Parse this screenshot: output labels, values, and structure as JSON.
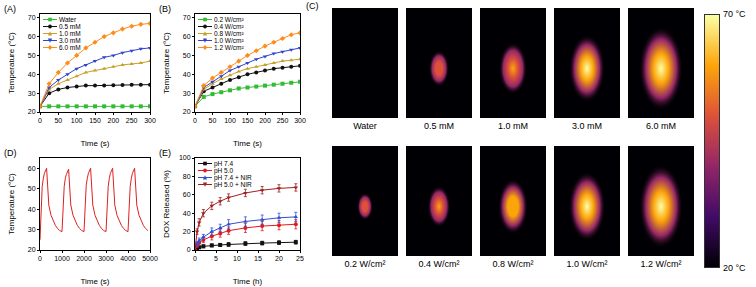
{
  "chart_data": [
    {
      "panel": "(A)",
      "type": "line",
      "x_label": "Time (s)",
      "y_label": "Temperature (°C)",
      "xlim": [
        0,
        300
      ],
      "xticks": [
        0,
        50,
        100,
        150,
        200,
        250,
        300
      ],
      "ylim": [
        20,
        72
      ],
      "yticks": [
        20,
        30,
        40,
        50,
        60,
        70
      ],
      "grid": false,
      "legend": "upper left",
      "x": [
        0,
        25,
        50,
        75,
        100,
        125,
        150,
        175,
        200,
        225,
        250,
        275,
        300
      ],
      "series": [
        {
          "name": "Water",
          "color": "#33bb33",
          "marker": "square",
          "values": [
            23,
            23,
            23,
            23,
            23,
            23,
            23,
            23,
            23,
            23,
            23,
            23,
            23
          ]
        },
        {
          "name": "0.5 mM",
          "color": "#111111",
          "marker": "circle",
          "values": [
            23,
            30,
            32,
            33,
            33.5,
            34,
            34,
            34,
            34.2,
            34.3,
            34.4,
            34.5,
            34.5
          ]
        },
        {
          "name": "1.0 mM",
          "color": "#c8a028",
          "marker": "triangle-up",
          "values": [
            23,
            32,
            35,
            37,
            39,
            41,
            42,
            43,
            44,
            45,
            45.5,
            46,
            47
          ]
        },
        {
          "name": "3.0 mM",
          "color": "#3344cc",
          "marker": "triangle-down",
          "values": [
            23,
            33,
            37,
            40,
            43,
            45,
            47,
            49,
            50,
            51.5,
            52.5,
            53.5,
            54
          ]
        },
        {
          "name": "6.0 mM",
          "color": "#ff8c1a",
          "marker": "diamond",
          "values": [
            23,
            35,
            41,
            46,
            50,
            54,
            57,
            60,
            62,
            64,
            65.5,
            66.5,
            67
          ]
        }
      ]
    },
    {
      "panel": "(B)",
      "type": "line",
      "x_label": "Time (s)",
      "y_label": "Temperature (°C)",
      "xlim": [
        0,
        300
      ],
      "xticks": [
        0,
        50,
        100,
        150,
        200,
        250,
        300
      ],
      "ylim": [
        20,
        72
      ],
      "yticks": [
        20,
        30,
        40,
        50,
        60,
        70
      ],
      "grid": false,
      "legend": "upper left",
      "x": [
        0,
        25,
        50,
        75,
        100,
        125,
        150,
        175,
        200,
        225,
        250,
        275,
        300
      ],
      "series": [
        {
          "name": "0.2 W/cm²",
          "color": "#33bb33",
          "marker": "square",
          "values": [
            23,
            28,
            29.5,
            30.5,
            31.5,
            32.5,
            33,
            33.5,
            34,
            34.5,
            35,
            35.5,
            36
          ]
        },
        {
          "name": "0.4 W/cm²",
          "color": "#111111",
          "marker": "circle",
          "values": [
            23,
            31,
            33,
            35,
            37,
            38.5,
            40,
            41,
            42,
            43,
            43.5,
            44,
            44.5
          ]
        },
        {
          "name": "0.8 W/cm²",
          "color": "#c8a028",
          "marker": "triangle-up",
          "values": [
            23,
            32,
            35,
            37.5,
            39.5,
            41.5,
            43,
            44,
            45,
            46,
            47,
            47.5,
            48
          ]
        },
        {
          "name": "1.0 W/cm²",
          "color": "#3344cc",
          "marker": "triangle-down",
          "values": [
            23,
            33,
            36,
            39,
            42,
            44,
            46,
            48,
            49.5,
            51,
            52,
            53,
            54
          ]
        },
        {
          "name": "1.2 W/cm²",
          "color": "#ff8c1a",
          "marker": "diamond",
          "values": [
            23,
            34,
            38,
            41,
            44,
            47,
            50,
            52.5,
            55,
            57,
            59,
            61,
            62
          ]
        }
      ]
    },
    {
      "panel": "(D)",
      "type": "line",
      "x_label": "Time (s)",
      "y_label": "Temperature (°C)",
      "xlim": [
        0,
        5000
      ],
      "xticks": [
        0,
        1000,
        2000,
        3000,
        4000,
        5000
      ],
      "ylim": [
        20,
        65
      ],
      "yticks": [
        20,
        30,
        40,
        50,
        60
      ],
      "grid": false,
      "x": [
        0,
        50,
        100,
        150,
        200,
        300,
        350,
        400,
        500,
        600,
        700,
        800,
        900,
        1000,
        1050,
        1100,
        1150,
        1200,
        1300,
        1350,
        1400,
        1500,
        1600,
        1700,
        1800,
        1900,
        2000,
        2050,
        2100,
        2150,
        2200,
        2300,
        2350,
        2400,
        2500,
        2600,
        2700,
        2800,
        2900,
        3000,
        3050,
        3100,
        3150,
        3200,
        3300,
        3350,
        3400,
        3500,
        3600,
        3700,
        3800,
        3900,
        4000,
        4050,
        4100,
        4150,
        4200,
        4300,
        4350,
        4400,
        4500,
        4600,
        4700,
        4800,
        4900
      ],
      "series": [
        {
          "color": "#e02020",
          "marker": "none",
          "values": [
            25,
            44,
            51,
            55,
            57.5,
            60,
            47,
            42,
            37,
            34,
            32,
            30.5,
            29.5,
            29,
            45,
            51,
            55,
            57,
            59.5,
            47,
            42,
            37,
            34,
            32,
            30.5,
            29.5,
            29,
            45,
            51.5,
            55,
            57.5,
            60,
            47,
            42,
            37,
            34,
            32,
            30.5,
            29.5,
            29,
            45,
            51,
            55,
            57.5,
            60,
            47.5,
            42,
            37,
            34,
            32,
            30.5,
            29.5,
            29,
            45,
            51,
            55,
            57.5,
            60,
            47,
            42,
            37,
            34,
            32,
            30.5,
            29.5
          ]
        }
      ]
    },
    {
      "panel": "(E)",
      "type": "line",
      "x_label": "Time (h)",
      "y_label": "DOX Released (%)",
      "xlim": [
        0,
        25
      ],
      "xticks": [
        0,
        5,
        10,
        15,
        20,
        25
      ],
      "ylim": [
        0,
        100
      ],
      "yticks": [
        0,
        20,
        40,
        60,
        80,
        100
      ],
      "grid": false,
      "legend": "upper left",
      "x": [
        0,
        0.5,
        1,
        2,
        4,
        6,
        8,
        12,
        16,
        20,
        24
      ],
      "series": [
        {
          "name": "pH 7.4",
          "color": "#111111",
          "marker": "square",
          "values": [
            0,
            2,
            3,
            4,
            5,
            5.5,
            6,
            7,
            7.5,
            8,
            8.5
          ],
          "errors": [
            0,
            1,
            1,
            1.5,
            1.5,
            1.5,
            2,
            2,
            2,
            2,
            2
          ]
        },
        {
          "name": "pH 5.0",
          "color": "#e31a1c",
          "marker": "circle",
          "values": [
            0,
            5,
            8,
            11,
            15,
            18,
            21,
            24,
            26,
            27,
            28
          ],
          "errors": [
            0,
            2,
            3,
            3,
            4,
            4,
            4,
            5,
            5,
            5,
            5
          ]
        },
        {
          "name": "pH 7.4 + NIR",
          "color": "#3050d0",
          "marker": "triangle-up",
          "values": [
            0,
            7,
            10,
            14,
            20,
            24,
            28,
            31,
            33,
            35,
            36
          ],
          "errors": [
            0,
            2,
            3,
            3,
            4,
            4,
            5,
            5,
            5,
            5,
            5
          ]
        },
        {
          "name": "pH 5.0 + NIR",
          "color": "#a02020",
          "marker": "triangle-down",
          "values": [
            0,
            20,
            30,
            40,
            48,
            53,
            57,
            62,
            65,
            67,
            68
          ],
          "errors": [
            0,
            3,
            4,
            4,
            4,
            4,
            4,
            4,
            4,
            4,
            4
          ]
        }
      ]
    }
  ],
  "panel_c": {
    "panel": "(C)",
    "rows": [
      [
        "Water",
        "0.5 mM",
        "1.0 mM",
        "3.0 mM",
        "6.0 mM"
      ],
      [
        "0.2 W/cm²",
        "0.4 W/cm²",
        "0.8 W/cm²",
        "1.0 W/cm²",
        "1.2 W/cm²"
      ]
    ],
    "colorbar": {
      "range": [
        20,
        70
      ],
      "ticks": [
        {
          "value": 70,
          "label": "70 °C"
        },
        {
          "value": 20,
          "label": "20 °C"
        }
      ]
    }
  }
}
